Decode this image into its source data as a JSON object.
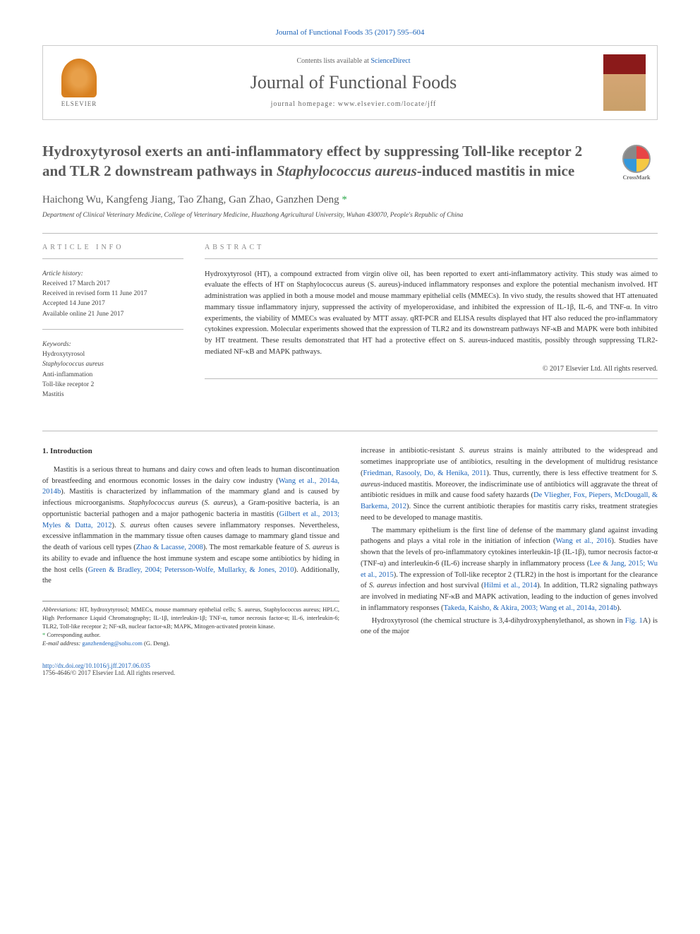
{
  "top_citation": "Journal of Functional Foods 35 (2017) 595–604",
  "header": {
    "contents_prefix": "Contents lists available at ",
    "contents_link": "ScienceDirect",
    "journal_name": "Journal of Functional Foods",
    "homepage_label": "journal homepage: www.elsevier.com/locate/jff",
    "elsevier_label": "ELSEVIER"
  },
  "crossmark_label": "CrossMark",
  "title": {
    "line1": "Hydroxytyrosol exerts an anti-inflammatory effect by suppressing Toll-like receptor 2 and TLR 2 downstream pathways in ",
    "italic": "Staphylococcus aureus",
    "line2": "-induced mastitis in mice"
  },
  "authors": "Haichong Wu, Kangfeng Jiang, Tao Zhang, Gan Zhao, Ganzhen Deng",
  "corresponding_mark": " *",
  "affiliation": "Department of Clinical Veterinary Medicine, College of Veterinary Medicine, Huazhong Agricultural University, Wuhan 430070, People's Republic of China",
  "article_info": {
    "heading": "article info",
    "history_label": "Article history:",
    "history": [
      "Received 17 March 2017",
      "Received in revised form 11 June 2017",
      "Accepted 14 June 2017",
      "Available online 21 June 2017"
    ],
    "keywords_label": "Keywords:",
    "keywords": [
      "Hydroxytyrosol",
      "Staphylococcus aureus",
      "Anti-inflammation",
      "Toll-like receptor 2",
      "Mastitis"
    ]
  },
  "abstract": {
    "heading": "abstract",
    "text": "Hydroxytyrosol (HT), a compound extracted from virgin olive oil, has been reported to exert anti-inflammatory activity. This study was aimed to evaluate the effects of HT on Staphylococcus aureus (S. aureus)-induced inflammatory responses and explore the potential mechanism involved. HT administration was applied in both a mouse model and mouse mammary epithelial cells (MMECs). In vivo study, the results showed that HT attenuated mammary tissue inflammatory injury, suppressed the activity of myeloperoxidase, and inhibited the expression of IL-1β, IL-6, and TNF-α. In vitro experiments, the viability of MMECs was evaluated by MTT assay. qRT-PCR and ELISA results displayed that HT also reduced the pro-inflammatory cytokines expression. Molecular experiments showed that the expression of TLR2 and its downstream pathways NF-κB and MAPK were both inhibited by HT treatment. These results demonstrated that HT had a protective effect on S. aureus-induced mastitis, possibly through suppressing TLR2-mediated NF-κB and MAPK pathways.",
    "copyright": "© 2017 Elsevier Ltd. All rights reserved."
  },
  "introduction": {
    "heading": "1. Introduction",
    "col1": {
      "p1_a": "Mastitis is a serious threat to humans and dairy cows and often leads to human discontinuation of breastfeeding and enormous economic losses in the dairy cow industry (",
      "p1_cite1": "Wang et al., 2014a, 2014b",
      "p1_b": "). Mastitis is characterized by inflammation of the mammary gland and is caused by infectious microorganisms. ",
      "p1_italic1": "Staphylococcus aureus",
      "p1_c": " (",
      "p1_italic2": "S. aureus",
      "p1_d": "), a Gram-positive bacteria, is an opportunistic bacterial pathogen and a major pathogenic bacteria in mastitis (",
      "p1_cite2": "Gilbert et al., 2013; Myles & Datta, 2012",
      "p1_e": "). ",
      "p1_italic3": "S. aureus",
      "p1_f": " often causes severe inflammatory responses. Nevertheless, excessive inflammation in the mammary tissue often causes damage to mammary gland tissue and the death of various cell types (",
      "p1_cite3": "Zhao & Lacasse, 2008",
      "p1_g": "). The most remarkable feature of ",
      "p1_italic4": "S. aureus",
      "p1_h": " is its ability to evade and influence the host immune system and escape some antibiotics by hiding in the host cells (",
      "p1_cite4": "Green & Bradley, 2004; Petersson-Wolfe, Mullarky, & Jones, 2010",
      "p1_i": "). Additionally, the"
    },
    "col2": {
      "p1_a": "increase in antibiotic-resistant ",
      "p1_italic1": "S. aureus",
      "p1_b": " strains is mainly attributed to the widespread and sometimes inappropriate use of antibiotics, resulting in the development of multidrug resistance (",
      "p1_cite1": "Friedman, Rasooly, Do, & Henika, 2011",
      "p1_c": "). Thus, currently, there is less effective treatment for ",
      "p1_italic2": "S. aureus",
      "p1_d": "-induced mastitis. Moreover, the indiscriminate use of antibiotics will aggravate the threat of antibiotic residues in milk and cause food safety hazards (",
      "p1_cite2": "De Vliegher, Fox, Piepers, McDougall, & Barkema, 2012",
      "p1_e": "). Since the current antibiotic therapies for mastitis carry risks, treatment strategies need to be developed to manage mastitis.",
      "p2_a": "The mammary epithelium is the first line of defense of the mammary gland against invading pathogens and plays a vital role in the initiation of infection (",
      "p2_cite1": "Wang et al., 2016",
      "p2_b": "). Studies have shown that the levels of pro-inflammatory cytokines interleukin-1β (IL-1β), tumor necrosis factor-α (TNF-α) and interleukin-6 (IL-6) increase sharply in inflammatory process (",
      "p2_cite2": "Lee & Jang, 2015; Wu et al., 2015",
      "p2_c": "). The expression of Toll-like receptor 2 (TLR2) in the host is important for the clearance of ",
      "p2_italic1": "S. aureus",
      "p2_d": " infection and host survival (",
      "p2_cite3": "Hilmi et al., 2014",
      "p2_e": "). In addition, TLR2 signaling pathways are involved in mediating NF-κB and MAPK activation, leading to the induction of genes involved in inflammatory responses (",
      "p2_cite4": "Takeda, Kaisho, & Akira, 2003; Wang et al., 2014a, 2014b",
      "p2_f": ").",
      "p3_a": "Hydroxytyrosol (the chemical structure is 3,4-dihydroxyphenylethanol, as shown in ",
      "p3_cite1": "Fig. 1",
      "p3_b": "A) is one of the major"
    }
  },
  "footnotes": {
    "abbrev_label": "Abbreviations:",
    "abbrev": " HT, hydroxytyrosol; MMECs, mouse mammary epithelial cells; S. aureus, Staphylococcus aureus; HPLC, High Performance Liquid Chromatography; IL-1β, interleukin-1β; TNF-α, tumor necrosis factor-α; IL-6, interleukin-6; TLR2, Toll-like receptor 2; NF-κB, nuclear factor-κB; MAPK, Mitogen-activated protein kinase.",
    "corr": "Corresponding author.",
    "email_label": "E-mail address: ",
    "email": "ganzhendeng@sohu.com",
    "email_name": " (G. Deng)."
  },
  "footer": {
    "doi": "http://dx.doi.org/10.1016/j.jff.2017.06.035",
    "issn": "1756-4646/© 2017 Elsevier Ltd. All rights reserved."
  },
  "colors": {
    "link": "#1b62b8",
    "accent": "#2ba84a",
    "text": "#333333",
    "heading_gray": "#888888",
    "border": "#cccccc"
  }
}
